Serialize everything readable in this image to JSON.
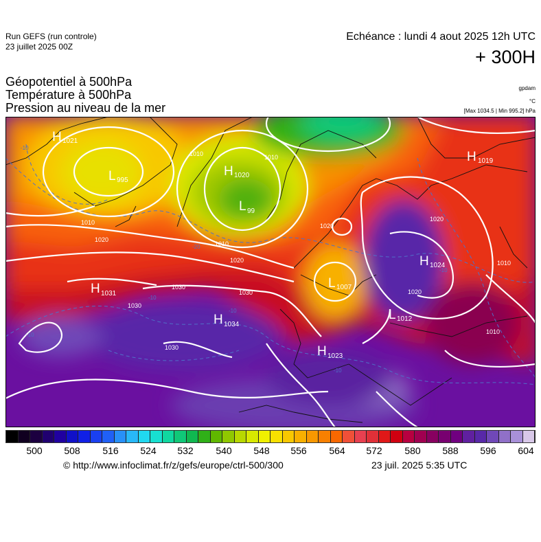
{
  "header": {
    "run_title": "Run GEFS (run controle)",
    "run_date": "23 juillet 2025 00Z",
    "echeance": "Echéance : lundi 4 aout 2025 12h UTC",
    "lead_time": "+ 300H"
  },
  "parameters": [
    "Géopotentiel à 500hPa",
    "Température à 500hPa",
    "Pression au niveau de la mer"
  ],
  "units": {
    "geopotential": "gpdam",
    "temperature": "°C",
    "pressure": "[Max 1034.5 | Min 995.2] hPa"
  },
  "map": {
    "centers": [
      {
        "type": "H",
        "value": "1021"
      },
      {
        "type": "L",
        "value": "995"
      },
      {
        "type": "H",
        "value": "1020"
      },
      {
        "type": "L",
        "value": "99"
      },
      {
        "type": "H",
        "value": "1019"
      },
      {
        "type": "H",
        "value": "1024"
      },
      {
        "type": "H",
        "value": "1031"
      },
      {
        "type": "H",
        "value": "1034"
      },
      {
        "type": "L",
        "value": "1007"
      },
      {
        "type": "L",
        "value": "1012"
      },
      {
        "type": "H",
        "value": "1023"
      }
    ],
    "isobar_labels": [
      "1010",
      "1010",
      "1010",
      "1010",
      "1020",
      "1020",
      "1020",
      "1030",
      "1030",
      "1030",
      "1030",
      "1020",
      "1010",
      "1010",
      "1020"
    ],
    "isotherm_labels": [
      "-10",
      "-10",
      "-10",
      "-10",
      "-10",
      "-20",
      "-10"
    ]
  },
  "scale": {
    "labels": [
      "500",
      "508",
      "516",
      "524",
      "532",
      "540",
      "548",
      "556",
      "564",
      "572",
      "580",
      "588",
      "596",
      "604"
    ],
    "colors": [
      "#000000",
      "#100020",
      "#1c0040",
      "#200070",
      "#2000a0",
      "#1010c8",
      "#1020e6",
      "#1a40f0",
      "#2060f6",
      "#2890f8",
      "#28b8f8",
      "#20d8f0",
      "#18e0d0",
      "#10d8a0",
      "#10c878",
      "#10b850",
      "#30b018",
      "#60b800",
      "#90c800",
      "#b8d800",
      "#d8e800",
      "#f0f000",
      "#f8e000",
      "#f8c800",
      "#f8b000",
      "#f89800",
      "#f88000",
      "#f86800",
      "#f05038",
      "#e84050",
      "#e03038",
      "#e01818",
      "#d00010",
      "#b80040",
      "#a00050",
      "#880060",
      "#780070",
      "#700080",
      "#6020a0",
      "#5828a8",
      "#7048b8",
      "#9070c8",
      "#a890d8",
      "#d8c8e8"
    ]
  },
  "footer": {
    "credit": "© http://www.infoclimat.fr/z/gefs/europe/ctrl-500/300",
    "generated": "23 juil. 2025  5:35 UTC"
  }
}
